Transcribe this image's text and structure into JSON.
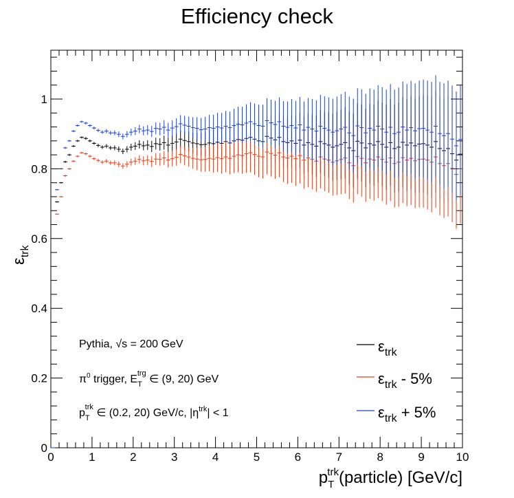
{
  "chart_data": {
    "type": "scatter",
    "title": "Efficiency check",
    "xlabel": "p_T^trk(particle) [GeV/c]",
    "xlabel_parts": {
      "base": "p",
      "sub": "T",
      "sup": "trk",
      "rest": "(particle) [GeV/c]"
    },
    "ylabel": "ε_trk",
    "ylabel_parts": {
      "base": "ε",
      "sub": "trk"
    },
    "xlim": [
      0,
      10
    ],
    "ylim": [
      0,
      1.14
    ],
    "x_ticks": [
      "0",
      "1",
      "2",
      "3",
      "4",
      "5",
      "6",
      "7",
      "8",
      "9",
      "10"
    ],
    "y_ticks": [
      "0",
      "0.2",
      "0.4",
      "0.6",
      "0.8",
      "1"
    ],
    "grid": false,
    "legend_position": "bottom-right",
    "annotations": {
      "line1": {
        "pre": "Pythia, ",
        "sqrt": "√s",
        "post": " = 200 GeV"
      },
      "line2": {
        "a": "π",
        "a_sup": "0",
        "b": " trigger, E",
        "b_sub": "T",
        "b_sup": "trg",
        "c": " ∈ (9, 20) GeV"
      },
      "line3": {
        "a": "p",
        "a_sub": "T",
        "a_sup": "trk",
        "b": " ∈ (0.2, 20) GeV/c, |η",
        "b_sup": "trk",
        "c": "| < 1"
      }
    },
    "series": [
      {
        "name": "ε_trk",
        "legend": {
          "base": "ε",
          "sub": "trk",
          "suffix": ""
        },
        "color": "#000000",
        "x": [
          0.05,
          0.15,
          0.25,
          0.35,
          0.45,
          0.55,
          0.65,
          0.75,
          0.85,
          0.95,
          1.05,
          1.15,
          1.25,
          1.35,
          1.45,
          1.55,
          1.65,
          1.75,
          1.85,
          1.95,
          2.05,
          2.15,
          2.25,
          2.35,
          2.45,
          2.55,
          2.65,
          2.75,
          2.85,
          2.95,
          3.05,
          3.15,
          3.25,
          3.35,
          3.45,
          3.55,
          3.65,
          3.75,
          3.85,
          3.95,
          4.05,
          4.15,
          4.25,
          4.35,
          4.45,
          4.55,
          4.65,
          4.75,
          4.85,
          4.95,
          5.05,
          5.15,
          5.25,
          5.35,
          5.45,
          5.55,
          5.65,
          5.75,
          5.85,
          5.95,
          6.05,
          6.15,
          6.25,
          6.35,
          6.45,
          6.55,
          6.65,
          6.75,
          6.85,
          6.95,
          7.05,
          7.15,
          7.25,
          7.35,
          7.45,
          7.55,
          7.65,
          7.75,
          7.85,
          7.95,
          8.05,
          8.15,
          8.25,
          8.35,
          8.45,
          8.55,
          8.65,
          8.75,
          8.85,
          8.95,
          9.05,
          9.15,
          9.25,
          9.35,
          9.45,
          9.55,
          9.65,
          9.75,
          9.85,
          9.95
        ],
        "y": [
          0,
          0.705,
          0.76,
          0.82,
          0.84,
          0.865,
          0.88,
          0.89,
          0.887,
          0.88,
          0.873,
          0.867,
          0.862,
          0.865,
          0.86,
          0.86,
          0.856,
          0.85,
          0.856,
          0.862,
          0.865,
          0.87,
          0.866,
          0.868,
          0.864,
          0.872,
          0.87,
          0.875,
          0.868,
          0.873,
          0.877,
          0.885,
          0.881,
          0.878,
          0.874,
          0.872,
          0.869,
          0.87,
          0.874,
          0.872,
          0.876,
          0.873,
          0.878,
          0.874,
          0.88,
          0.884,
          0.882,
          0.887,
          0.89,
          0.885,
          0.88,
          0.878,
          0.893,
          0.888,
          0.883,
          0.89,
          0.878,
          0.875,
          0.88,
          0.873,
          0.882,
          0.868,
          0.875,
          0.87,
          0.865,
          0.878,
          0.872,
          0.868,
          0.862,
          0.866,
          0.87,
          0.875,
          0.86,
          0.852,
          0.879,
          0.874,
          0.86,
          0.872,
          0.868,
          0.878,
          0.87,
          0.862,
          0.875,
          0.858,
          0.862,
          0.876,
          0.868,
          0.874,
          0.866,
          0.871,
          0.872,
          0.868,
          0.862,
          0.878,
          0.858,
          0.852,
          0.858,
          0.843,
          0.825,
          0.842
        ],
        "err": [
          0,
          0.002,
          0.002,
          0.003,
          0.003,
          0.003,
          0.003,
          0.003,
          0.004,
          0.004,
          0.004,
          0.005,
          0.005,
          0.006,
          0.006,
          0.007,
          0.008,
          0.008,
          0.009,
          0.01,
          0.011,
          0.012,
          0.013,
          0.014,
          0.016,
          0.017,
          0.018,
          0.02,
          0.021,
          0.022,
          0.024,
          0.025,
          0.027,
          0.028,
          0.03,
          0.032,
          0.034,
          0.035,
          0.037,
          0.039,
          0.041,
          0.043,
          0.044,
          0.046,
          0.048,
          0.05,
          0.052,
          0.054,
          0.056,
          0.058,
          0.06,
          0.062,
          0.064,
          0.066,
          0.068,
          0.07,
          0.072,
          0.074,
          0.076,
          0.078,
          0.08,
          0.082,
          0.084,
          0.086,
          0.088,
          0.09,
          0.092,
          0.094,
          0.096,
          0.098,
          0.1,
          0.102,
          0.104,
          0.106,
          0.108,
          0.11,
          0.112,
          0.114,
          0.116,
          0.118,
          0.12,
          0.122,
          0.124,
          0.126,
          0.128,
          0.13,
          0.132,
          0.134,
          0.136,
          0.138,
          0.14,
          0.142,
          0.144,
          0.146,
          0.148,
          0.15,
          0.152,
          0.154,
          0.156,
          0.158
        ]
      },
      {
        "name": "ε_trk - 5%",
        "legend": {
          "base": "ε",
          "sub": "trk",
          "suffix": " - 5%"
        },
        "color": "#e0401c",
        "x": [
          0.05,
          0.15,
          0.25,
          0.35,
          0.45,
          0.55,
          0.65,
          0.75,
          0.85,
          0.95,
          1.05,
          1.15,
          1.25,
          1.35,
          1.45,
          1.55,
          1.65,
          1.75,
          1.85,
          1.95,
          2.05,
          2.15,
          2.25,
          2.35,
          2.45,
          2.55,
          2.65,
          2.75,
          2.85,
          2.95,
          3.05,
          3.15,
          3.25,
          3.35,
          3.45,
          3.55,
          3.65,
          3.75,
          3.85,
          3.95,
          4.05,
          4.15,
          4.25,
          4.35,
          4.45,
          4.55,
          4.65,
          4.75,
          4.85,
          4.95,
          5.05,
          5.15,
          5.25,
          5.35,
          5.45,
          5.55,
          5.65,
          5.75,
          5.85,
          5.95,
          6.05,
          6.15,
          6.25,
          6.35,
          6.45,
          6.55,
          6.65,
          6.75,
          6.85,
          6.95,
          7.05,
          7.15,
          7.25,
          7.35,
          7.45,
          7.55,
          7.65,
          7.75,
          7.85,
          7.95,
          8.05,
          8.15,
          8.25,
          8.35,
          8.45,
          8.55,
          8.65,
          8.75,
          8.85,
          8.95,
          9.05,
          9.15,
          9.25,
          9.35,
          9.45,
          9.55,
          9.65,
          9.75,
          9.85,
          9.95
        ],
        "y": [
          0,
          0.67,
          0.72,
          0.78,
          0.8,
          0.822,
          0.836,
          0.846,
          0.843,
          0.836,
          0.829,
          0.824,
          0.819,
          0.822,
          0.817,
          0.817,
          0.813,
          0.808,
          0.813,
          0.819,
          0.822,
          0.827,
          0.823,
          0.825,
          0.821,
          0.828,
          0.827,
          0.831,
          0.825,
          0.829,
          0.833,
          0.841,
          0.837,
          0.834,
          0.83,
          0.828,
          0.826,
          0.827,
          0.83,
          0.828,
          0.832,
          0.829,
          0.834,
          0.83,
          0.836,
          0.84,
          0.838,
          0.843,
          0.846,
          0.841,
          0.836,
          0.834,
          0.848,
          0.844,
          0.839,
          0.846,
          0.834,
          0.831,
          0.836,
          0.829,
          0.838,
          0.825,
          0.831,
          0.827,
          0.822,
          0.834,
          0.828,
          0.825,
          0.819,
          0.823,
          0.827,
          0.831,
          0.817,
          0.809,
          0.835,
          0.83,
          0.817,
          0.828,
          0.825,
          0.834,
          0.827,
          0.819,
          0.831,
          0.815,
          0.819,
          0.832,
          0.825,
          0.83,
          0.823,
          0.827,
          0.828,
          0.825,
          0.819,
          0.834,
          0.815,
          0.809,
          0.815,
          0.801,
          0.784,
          0.8
        ],
        "err": [
          0,
          0.002,
          0.002,
          0.003,
          0.003,
          0.003,
          0.003,
          0.003,
          0.004,
          0.004,
          0.004,
          0.005,
          0.005,
          0.006,
          0.006,
          0.007,
          0.008,
          0.008,
          0.009,
          0.01,
          0.011,
          0.012,
          0.013,
          0.014,
          0.016,
          0.017,
          0.018,
          0.02,
          0.021,
          0.022,
          0.024,
          0.025,
          0.027,
          0.028,
          0.03,
          0.032,
          0.034,
          0.035,
          0.037,
          0.039,
          0.041,
          0.043,
          0.044,
          0.046,
          0.048,
          0.05,
          0.052,
          0.054,
          0.056,
          0.058,
          0.06,
          0.062,
          0.064,
          0.066,
          0.068,
          0.07,
          0.072,
          0.074,
          0.076,
          0.078,
          0.08,
          0.082,
          0.084,
          0.086,
          0.088,
          0.09,
          0.092,
          0.094,
          0.096,
          0.098,
          0.1,
          0.102,
          0.104,
          0.106,
          0.108,
          0.11,
          0.112,
          0.114,
          0.116,
          0.118,
          0.12,
          0.122,
          0.124,
          0.126,
          0.128,
          0.13,
          0.132,
          0.134,
          0.136,
          0.138,
          0.14,
          0.142,
          0.144,
          0.146,
          0.148,
          0.15,
          0.152,
          0.154,
          0.156,
          0.158
        ]
      },
      {
        "name": "ε_trk + 5%",
        "legend": {
          "base": "ε",
          "sub": "trk",
          "suffix": " + 5%"
        },
        "color": "#1c3fd0",
        "x": [
          0.05,
          0.15,
          0.25,
          0.35,
          0.45,
          0.55,
          0.65,
          0.75,
          0.85,
          0.95,
          1.05,
          1.15,
          1.25,
          1.35,
          1.45,
          1.55,
          1.65,
          1.75,
          1.85,
          1.95,
          2.05,
          2.15,
          2.25,
          2.35,
          2.45,
          2.55,
          2.65,
          2.75,
          2.85,
          2.95,
          3.05,
          3.15,
          3.25,
          3.35,
          3.45,
          3.55,
          3.65,
          3.75,
          3.85,
          3.95,
          4.05,
          4.15,
          4.25,
          4.35,
          4.45,
          4.55,
          4.65,
          4.75,
          4.85,
          4.95,
          5.05,
          5.15,
          5.25,
          5.35,
          5.45,
          5.55,
          5.65,
          5.75,
          5.85,
          5.95,
          6.05,
          6.15,
          6.25,
          6.35,
          6.45,
          6.55,
          6.65,
          6.75,
          6.85,
          6.95,
          7.05,
          7.15,
          7.25,
          7.35,
          7.45,
          7.55,
          7.65,
          7.75,
          7.85,
          7.95,
          8.05,
          8.15,
          8.25,
          8.35,
          8.45,
          8.55,
          8.65,
          8.75,
          8.85,
          8.95,
          9.05,
          9.15,
          9.25,
          9.35,
          9.45,
          9.55,
          9.65,
          9.75,
          9.85,
          9.95
        ],
        "y": [
          0,
          0.74,
          0.8,
          0.86,
          0.88,
          0.908,
          0.924,
          0.935,
          0.931,
          0.924,
          0.917,
          0.91,
          0.905,
          0.908,
          0.903,
          0.903,
          0.899,
          0.893,
          0.899,
          0.905,
          0.908,
          0.914,
          0.909,
          0.911,
          0.907,
          0.916,
          0.914,
          0.919,
          0.911,
          0.917,
          0.921,
          0.929,
          0.925,
          0.922,
          0.918,
          0.916,
          0.912,
          0.914,
          0.918,
          0.916,
          0.92,
          0.917,
          0.922,
          0.918,
          0.924,
          0.928,
          0.926,
          0.931,
          0.935,
          0.929,
          0.924,
          0.922,
          0.938,
          0.932,
          0.927,
          0.935,
          0.922,
          0.919,
          0.924,
          0.917,
          0.926,
          0.911,
          0.919,
          0.914,
          0.908,
          0.922,
          0.916,
          0.911,
          0.905,
          0.909,
          0.914,
          0.919,
          0.903,
          0.895,
          0.923,
          0.918,
          0.903,
          0.916,
          0.911,
          0.922,
          0.914,
          0.905,
          0.919,
          0.901,
          0.905,
          0.92,
          0.911,
          0.918,
          0.909,
          0.915,
          0.916,
          0.911,
          0.905,
          0.922,
          0.901,
          0.895,
          0.901,
          0.885,
          0.866,
          0.884
        ],
        "err": [
          0,
          0.002,
          0.002,
          0.003,
          0.003,
          0.003,
          0.003,
          0.003,
          0.004,
          0.004,
          0.004,
          0.005,
          0.005,
          0.006,
          0.006,
          0.007,
          0.008,
          0.008,
          0.009,
          0.01,
          0.011,
          0.012,
          0.013,
          0.014,
          0.016,
          0.017,
          0.018,
          0.02,
          0.021,
          0.022,
          0.024,
          0.025,
          0.027,
          0.028,
          0.03,
          0.032,
          0.034,
          0.035,
          0.037,
          0.039,
          0.041,
          0.043,
          0.044,
          0.046,
          0.048,
          0.05,
          0.052,
          0.054,
          0.056,
          0.058,
          0.06,
          0.062,
          0.064,
          0.066,
          0.068,
          0.07,
          0.072,
          0.074,
          0.076,
          0.078,
          0.08,
          0.082,
          0.084,
          0.086,
          0.088,
          0.09,
          0.092,
          0.094,
          0.096,
          0.098,
          0.1,
          0.102,
          0.104,
          0.106,
          0.108,
          0.11,
          0.112,
          0.114,
          0.116,
          0.118,
          0.12,
          0.122,
          0.124,
          0.126,
          0.128,
          0.13,
          0.132,
          0.134,
          0.136,
          0.138,
          0.14,
          0.142,
          0.144,
          0.146,
          0.148,
          0.15,
          0.152,
          0.154,
          0.156,
          0.158
        ]
      }
    ]
  }
}
